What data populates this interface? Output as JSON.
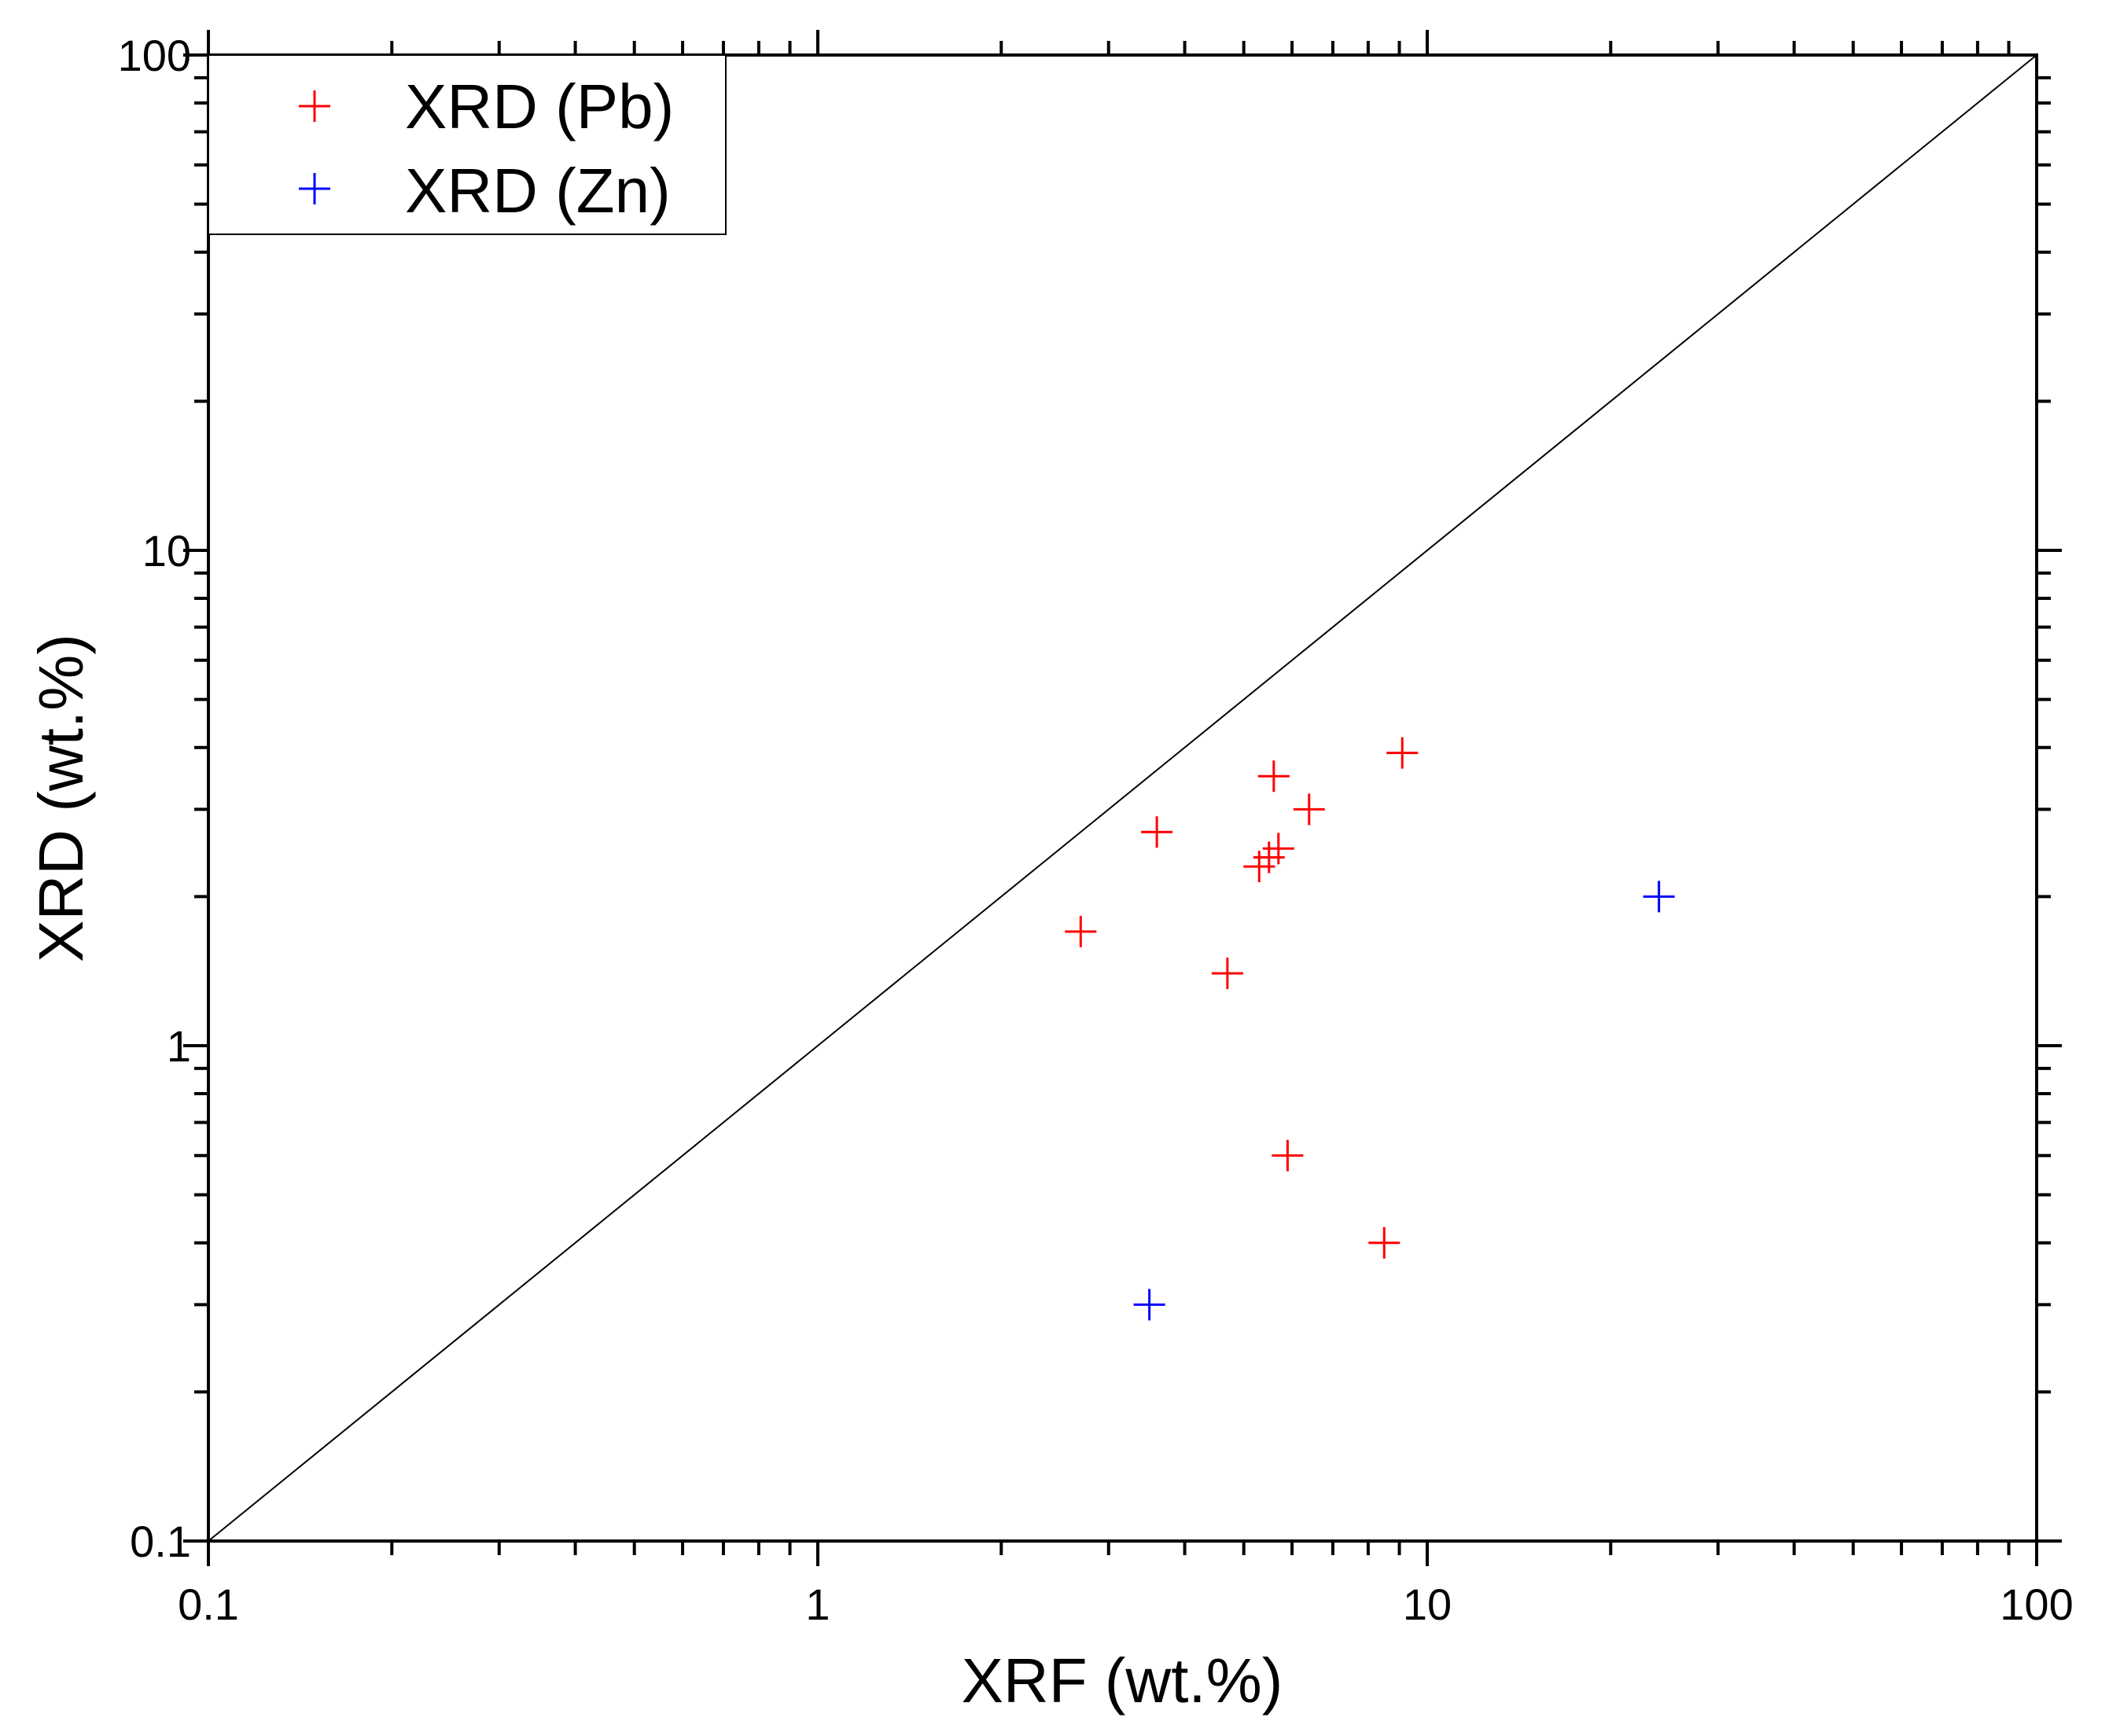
{
  "chart_data": {
    "type": "scatter",
    "title": "",
    "xlabel": "XRF (wt.%)",
    "ylabel": "XRD (wt.%)",
    "xscale": "log",
    "yscale": "log",
    "xlim": [
      0.1,
      100
    ],
    "ylim": [
      0.1,
      100
    ],
    "xticks": [
      "0.1",
      "1",
      "10",
      "100"
    ],
    "yticks": [
      "0.1",
      "1",
      "10",
      "100"
    ],
    "grid": false,
    "legend_position": "top-left",
    "reference_line": "y = x",
    "series": [
      {
        "name": "XRD (Pb)",
        "color": "#ff0000",
        "marker": "plus",
        "points": [
          {
            "x": 2.7,
            "y": 1.7
          },
          {
            "x": 3.6,
            "y": 2.7
          },
          {
            "x": 4.7,
            "y": 1.4
          },
          {
            "x": 5.3,
            "y": 2.3
          },
          {
            "x": 5.5,
            "y": 2.4
          },
          {
            "x": 5.7,
            "y": 2.5
          },
          {
            "x": 5.6,
            "y": 3.5
          },
          {
            "x": 6.4,
            "y": 3.0
          },
          {
            "x": 9.1,
            "y": 3.9
          },
          {
            "x": 5.9,
            "y": 0.6
          },
          {
            "x": 8.5,
            "y": 0.4
          }
        ]
      },
      {
        "name": "XRD (Zn)",
        "color": "#0000ff",
        "marker": "plus",
        "points": [
          {
            "x": 3.5,
            "y": 0.3
          },
          {
            "x": 24.0,
            "y": 2.0
          }
        ]
      }
    ]
  }
}
